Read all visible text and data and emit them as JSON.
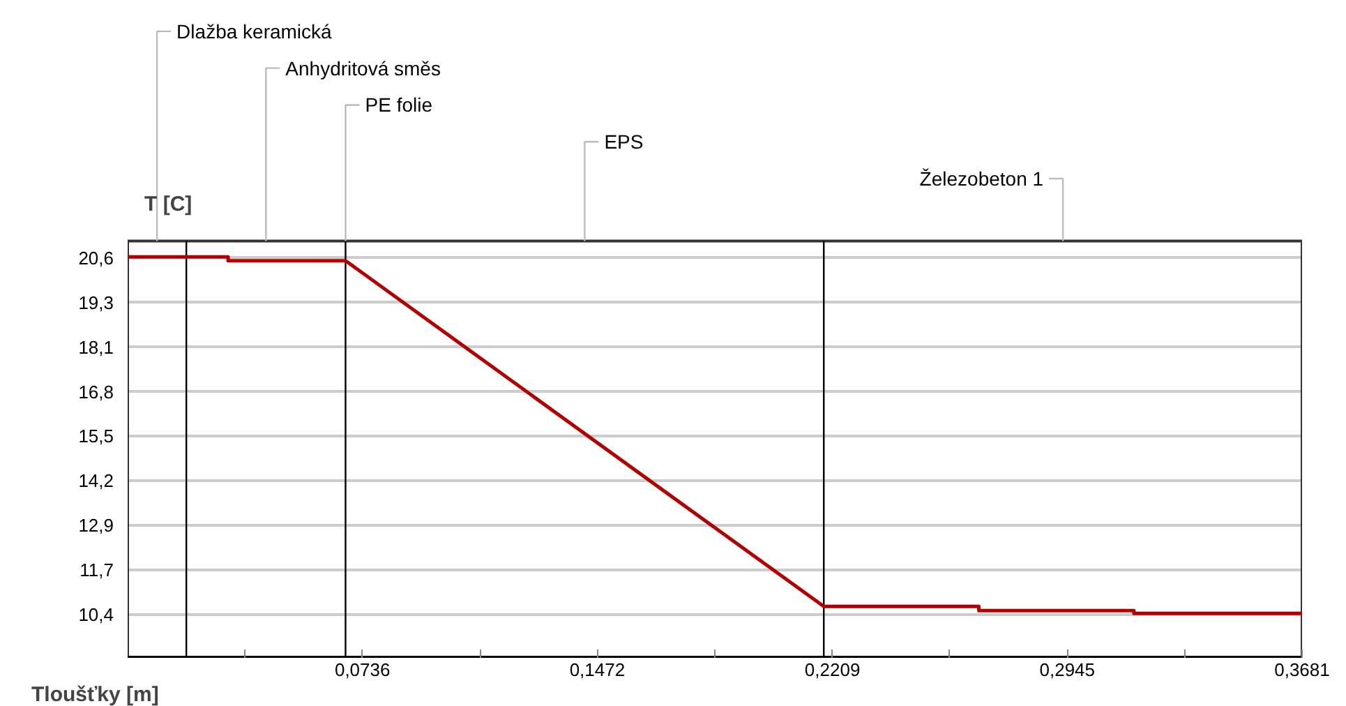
{
  "chart_data": {
    "type": "line",
    "xlabel": "Tloušťky [m]",
    "ylabel": "T [C]",
    "x": [
      0,
      0.0315,
      0.0315,
      0.0683,
      0.2182,
      0.2668,
      0.2668,
      0.3154,
      0.3154,
      0.3681
    ],
    "series": [
      {
        "color": "#b00000",
        "values": [
          20.63,
          20.63,
          20.52,
          20.52,
          10.64,
          10.64,
          10.52,
          10.52,
          10.44,
          10.44
        ]
      }
    ],
    "xlim": [
      0,
      0.3681
    ],
    "ylim": [
      9.17,
      21.08
    ],
    "xticks": [
      {
        "value": 0.0368,
        "label": null
      },
      {
        "value": 0.0736,
        "label": "0,0736"
      },
      {
        "value": 0.1104,
        "label": null
      },
      {
        "value": 0.1472,
        "label": "0,1472"
      },
      {
        "value": 0.184,
        "label": null
      },
      {
        "value": 0.2209,
        "label": "0,2209"
      },
      {
        "value": 0.2577,
        "label": null
      },
      {
        "value": 0.2945,
        "label": "0,2945"
      },
      {
        "value": 0.3313,
        "label": null
      },
      {
        "value": 0.3681,
        "label": "0,3681"
      }
    ],
    "yticks": [
      {
        "value": 10.4,
        "label": "10,4"
      },
      {
        "value": 11.675,
        "label": "11,7"
      },
      {
        "value": 12.95,
        "label": "12,9"
      },
      {
        "value": 14.225,
        "label": "14,2"
      },
      {
        "value": 15.5,
        "label": "15,5"
      },
      {
        "value": 16.775,
        "label": "16,8"
      },
      {
        "value": 18.05,
        "label": "18,1"
      },
      {
        "value": 19.325,
        "label": "19,3"
      },
      {
        "value": 20.6,
        "label": "20,6"
      }
    ],
    "grid": "y",
    "marker": "none",
    "line_style": "solid",
    "ref_lines": [
      {
        "axis": "x",
        "value": 0.0184,
        "color": "#000000"
      },
      {
        "axis": "x",
        "value": 0.0683,
        "color": "#000000"
      },
      {
        "axis": "x",
        "value": 0.2182,
        "color": "#000000"
      }
    ],
    "annotations": [
      "Dlažba keramická",
      "Anhydritová směs",
      {
        "text": "PE folie",
        "x": 0.0683,
        "y": 21.08
      },
      "EPS",
      "Železobeton 1"
    ]
  }
}
